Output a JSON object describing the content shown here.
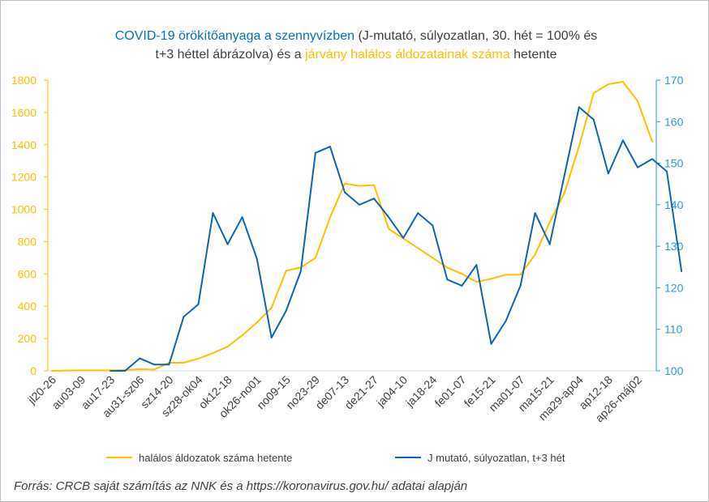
{
  "title": {
    "line1": {
      "part1": "COVID-19 örökítőanyaga a szennyvízben",
      "part2": " (J-mutató, súlyozatlan, 30. hét = 100% és"
    },
    "line2": {
      "part1": "t+3 héttel ábrázolva) és a ",
      "part2": "járvány halálos áldozatainak száma",
      "part3": " hetente"
    }
  },
  "source": "Forrás: CRCB saját számítás az NNK és a https://koronavirus.gov.hu/ adatai alapján",
  "colors": {
    "deaths": "#ffc000",
    "jindex": "#0e65b5",
    "right_axis": "#2e9bd6",
    "text": "#404040"
  },
  "chart_data": {
    "type": "line",
    "x_labels": [
      "jl20-26",
      "au03-09",
      "au17-23",
      "au31-sz06",
      "sz14-20",
      "sz28-ok04",
      "ok12-18",
      "ok26-no01",
      "no09-15",
      "no23-29",
      "de07-13",
      "de21-27",
      "ja04-10",
      "ja18-24",
      "fe01-07",
      "fe15-21",
      "ma01-07",
      "ma15-21",
      "ma29-ap04",
      "ap12-18",
      "ap26-máj02"
    ],
    "y_left": {
      "min": 0,
      "max": 1800,
      "ticks": [
        0,
        200,
        400,
        600,
        800,
        1000,
        1200,
        1400,
        1600,
        1800
      ]
    },
    "y_right": {
      "min": 100,
      "max": 170,
      "ticks": [
        100,
        110,
        120,
        130,
        140,
        150,
        160,
        170
      ]
    },
    "legend_position": "bottom",
    "series": [
      {
        "name": "halálos áldozatok száma hetente",
        "axis": "left",
        "start_index": 0,
        "values": [
          0,
          2,
          3,
          3,
          3,
          5,
          10,
          8,
          50,
          50,
          75,
          110,
          150,
          220,
          300,
          390,
          620,
          640,
          700,
          950,
          1160,
          1145,
          1150,
          880,
          820,
          760,
          700,
          640,
          600,
          550,
          570,
          595,
          595,
          720,
          920,
          1100,
          1390,
          1720,
          1775,
          1790,
          1670,
          1420
        ]
      },
      {
        "name": "J mutató, súlyozatlan, t+3 hét",
        "axis": "right",
        "start_index": 4,
        "values": [
          100,
          100,
          103,
          101.5,
          101.5,
          113,
          116,
          138,
          130.5,
          137,
          127,
          108,
          114.5,
          124,
          152.5,
          154,
          143,
          140,
          141.5,
          137,
          132,
          138,
          135,
          122,
          120.5,
          125.5,
          106.5,
          112,
          120.5,
          138,
          130.5,
          147,
          163.5,
          160.5,
          147.5,
          155.5,
          149,
          151,
          148,
          124
        ]
      }
    ]
  }
}
